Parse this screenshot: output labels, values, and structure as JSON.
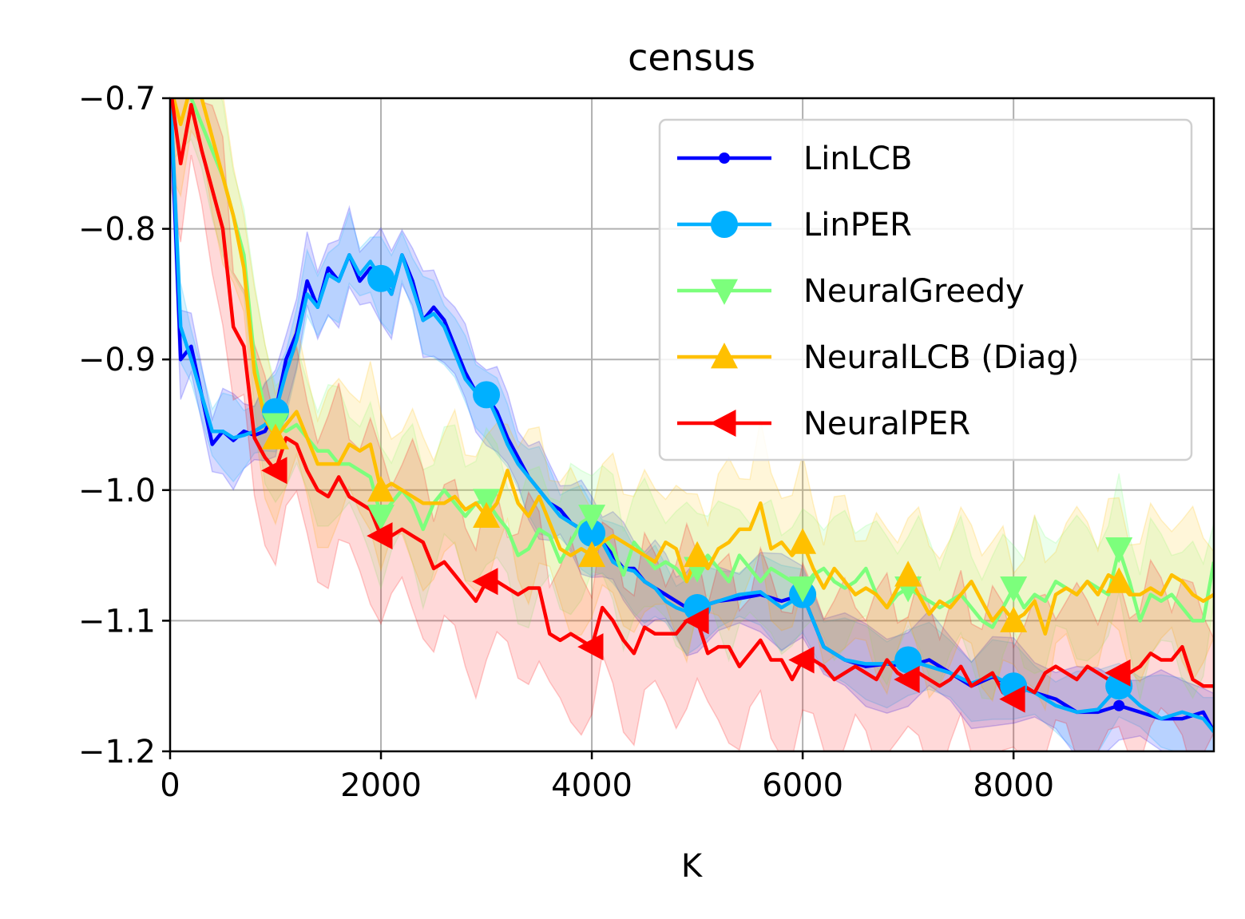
{
  "chart_data": {
    "type": "line",
    "title": "census",
    "xlabel": "K",
    "ylabel": "",
    "xlim": [
      0,
      9900
    ],
    "ylim": [
      -1.2,
      -0.7
    ],
    "xticks": [
      0,
      2000,
      4000,
      6000,
      8000
    ],
    "xtick_labels": [
      "0",
      "2000",
      "4000",
      "6000",
      "8000"
    ],
    "yticks": [
      -1.2,
      -1.1,
      -1.0,
      -0.9,
      -0.8,
      -0.7
    ],
    "ytick_labels": [
      "−1.2",
      "−1.1",
      "−1.0",
      "−0.9",
      "−0.8",
      "−0.7"
    ],
    "grid": true,
    "legend_position": "upper-right",
    "series": [
      {
        "name": "LinLCB",
        "color": "#0000ff",
        "marker": "point",
        "band": 0.028,
        "x": [
          0,
          100,
          200,
          400,
          500,
          600,
          700,
          800,
          900,
          1000,
          1100,
          1200,
          1300,
          1400,
          1500,
          1600,
          1700,
          1800,
          1900,
          2000,
          2100,
          2200,
          2300,
          2400,
          2500,
          2600,
          2700,
          2800,
          2900,
          3000,
          3100,
          3200,
          3300,
          3400,
          3500,
          3600,
          3700,
          3800,
          3900,
          4000,
          4100,
          4200,
          4300,
          4400,
          4500,
          4600,
          4700,
          4800,
          4900,
          5000,
          5200,
          5400,
          5600,
          5800,
          6000,
          6200,
          6400,
          6600,
          6800,
          7000,
          7200,
          7400,
          7600,
          7800,
          8000,
          8200,
          8400,
          8600,
          8800,
          9000,
          9200,
          9400,
          9600,
          9800,
          9900
        ],
        "y": [
          -0.69,
          -0.9,
          -0.89,
          -0.965,
          -0.955,
          -0.962,
          -0.955,
          -0.958,
          -0.955,
          -0.94,
          -0.9,
          -0.88,
          -0.84,
          -0.86,
          -0.83,
          -0.84,
          -0.82,
          -0.84,
          -0.83,
          -0.835,
          -0.85,
          -0.82,
          -0.84,
          -0.87,
          -0.86,
          -0.87,
          -0.89,
          -0.91,
          -0.925,
          -0.928,
          -0.94,
          -0.96,
          -0.975,
          -0.99,
          -1.0,
          -1.01,
          -1.015,
          -1.025,
          -1.03,
          -1.03,
          -1.04,
          -1.05,
          -1.06,
          -1.06,
          -1.07,
          -1.075,
          -1.08,
          -1.085,
          -1.09,
          -1.09,
          -1.085,
          -1.083,
          -1.08,
          -1.085,
          -1.08,
          -1.12,
          -1.13,
          -1.135,
          -1.133,
          -1.135,
          -1.13,
          -1.14,
          -1.15,
          -1.143,
          -1.15,
          -1.155,
          -1.16,
          -1.17,
          -1.17,
          -1.165,
          -1.17,
          -1.175,
          -1.175,
          -1.17,
          -1.185
        ]
      },
      {
        "name": "LinPER",
        "color": "#00b0ff",
        "marker": "circle",
        "band": 0.025,
        "x": [
          0,
          100,
          200,
          400,
          500,
          600,
          700,
          800,
          900,
          1000,
          1100,
          1200,
          1300,
          1400,
          1500,
          1600,
          1700,
          1800,
          1900,
          2000,
          2100,
          2200,
          2300,
          2400,
          2500,
          2600,
          2700,
          2800,
          2900,
          3000,
          3100,
          3200,
          3300,
          3400,
          3500,
          3600,
          3700,
          3800,
          3900,
          4000,
          4100,
          4200,
          4300,
          4400,
          4500,
          4600,
          4700,
          4800,
          4900,
          5000,
          5200,
          5400,
          5600,
          5800,
          6000,
          6200,
          6400,
          6600,
          6800,
          7000,
          7200,
          7400,
          7600,
          7800,
          8000,
          8200,
          8400,
          8600,
          8800,
          9000,
          9200,
          9400,
          9600,
          9800,
          9900
        ],
        "y": [
          -0.69,
          -0.875,
          -0.9,
          -0.955,
          -0.955,
          -0.96,
          -0.958,
          -0.955,
          -0.95,
          -0.94,
          -0.91,
          -0.885,
          -0.85,
          -0.86,
          -0.835,
          -0.84,
          -0.82,
          -0.835,
          -0.825,
          -0.838,
          -0.85,
          -0.82,
          -0.845,
          -0.87,
          -0.865,
          -0.875,
          -0.895,
          -0.915,
          -0.925,
          -0.927,
          -0.945,
          -0.965,
          -0.98,
          -0.99,
          -1.0,
          -1.01,
          -1.02,
          -1.025,
          -1.03,
          -1.033,
          -1.04,
          -1.055,
          -1.06,
          -1.062,
          -1.07,
          -1.075,
          -1.085,
          -1.09,
          -1.093,
          -1.09,
          -1.085,
          -1.08,
          -1.078,
          -1.09,
          -1.08,
          -1.12,
          -1.13,
          -1.133,
          -1.133,
          -1.13,
          -1.135,
          -1.14,
          -1.148,
          -1.142,
          -1.15,
          -1.155,
          -1.165,
          -1.17,
          -1.168,
          -1.15,
          -1.165,
          -1.175,
          -1.17,
          -1.175,
          -1.185
        ]
      },
      {
        "name": "NeuralGreedy",
        "color": "#7cff7c",
        "marker": "triangle-down",
        "band": 0.045,
        "x": [
          0,
          100,
          200,
          300,
          400,
          500,
          600,
          700,
          800,
          900,
          1000,
          1100,
          1200,
          1300,
          1400,
          1500,
          1600,
          1700,
          1800,
          1900,
          2000,
          2100,
          2200,
          2300,
          2400,
          2500,
          2600,
          2700,
          2800,
          2900,
          3000,
          3100,
          3200,
          3300,
          3400,
          3500,
          3600,
          3700,
          3800,
          3900,
          4000,
          4100,
          4200,
          4300,
          4400,
          4500,
          4600,
          4700,
          4800,
          4900,
          5000,
          5100,
          5200,
          5300,
          5400,
          5500,
          5600,
          5700,
          5800,
          5900,
          6000,
          6100,
          6200,
          6300,
          6400,
          6500,
          6600,
          6700,
          6800,
          6900,
          7000,
          7100,
          7200,
          7300,
          7400,
          7500,
          7600,
          7700,
          7800,
          7900,
          8000,
          8100,
          8200,
          8300,
          8400,
          8500,
          8600,
          8700,
          8800,
          8900,
          9000,
          9100,
          9200,
          9300,
          9400,
          9500,
          9600,
          9700,
          9800,
          9900
        ],
        "y": [
          -0.69,
          -0.69,
          -0.7,
          -0.72,
          -0.74,
          -0.76,
          -0.79,
          -0.82,
          -0.9,
          -0.94,
          -0.95,
          -0.955,
          -0.95,
          -0.96,
          -0.97,
          -0.97,
          -0.98,
          -0.98,
          -0.985,
          -0.99,
          -1.02,
          -1.01,
          -1.0,
          -1.01,
          -1.03,
          -1.01,
          -1.0,
          -1.01,
          -1.02,
          -1.01,
          -1.008,
          -1.02,
          -1.03,
          -1.05,
          -1.045,
          -1.03,
          -1.035,
          -1.055,
          -1.04,
          -1.025,
          -1.02,
          -1.035,
          -1.045,
          -1.065,
          -1.04,
          -1.05,
          -1.06,
          -1.055,
          -1.06,
          -1.07,
          -1.06,
          -1.05,
          -1.06,
          -1.07,
          -1.05,
          -1.06,
          -1.07,
          -1.06,
          -1.065,
          -1.07,
          -1.075,
          -1.065,
          -1.06,
          -1.07,
          -1.075,
          -1.07,
          -1.06,
          -1.08,
          -1.09,
          -1.08,
          -1.075,
          -1.08,
          -1.085,
          -1.09,
          -1.085,
          -1.08,
          -1.09,
          -1.1,
          -1.105,
          -1.09,
          -1.075,
          -1.09,
          -1.08,
          -1.085,
          -1.07,
          -1.075,
          -1.08,
          -1.07,
          -1.075,
          -1.08,
          -1.045,
          -1.07,
          -1.1,
          -1.08,
          -1.085,
          -1.08,
          -1.09,
          -1.1,
          -1.1,
          -1.055
        ]
      },
      {
        "name": "NeuralLCB (Diag)",
        "color": "#ffc000",
        "marker": "triangle-up",
        "band": 0.05,
        "x": [
          0,
          100,
          200,
          300,
          400,
          500,
          600,
          700,
          800,
          900,
          1000,
          1100,
          1200,
          1300,
          1400,
          1500,
          1600,
          1700,
          1800,
          1900,
          2000,
          2100,
          2200,
          2300,
          2400,
          2500,
          2600,
          2700,
          2800,
          2900,
          3000,
          3100,
          3200,
          3300,
          3400,
          3500,
          3600,
          3700,
          3800,
          3900,
          4000,
          4100,
          4200,
          4300,
          4400,
          4500,
          4600,
          4700,
          4800,
          4900,
          5000,
          5100,
          5200,
          5300,
          5400,
          5500,
          5600,
          5700,
          5800,
          5900,
          6000,
          6100,
          6200,
          6300,
          6400,
          6500,
          6600,
          6700,
          6800,
          6900,
          7000,
          7100,
          7200,
          7300,
          7400,
          7500,
          7600,
          7700,
          7800,
          7900,
          8000,
          8100,
          8200,
          8300,
          8400,
          8500,
          8600,
          8700,
          8800,
          8900,
          9000,
          9100,
          9200,
          9300,
          9400,
          9500,
          9600,
          9700,
          9800,
          9900
        ],
        "y": [
          -0.69,
          -0.72,
          -0.69,
          -0.7,
          -0.73,
          -0.76,
          -0.79,
          -0.83,
          -0.91,
          -0.945,
          -0.96,
          -0.95,
          -0.94,
          -0.96,
          -0.98,
          -0.98,
          -0.98,
          -0.965,
          -0.97,
          -0.965,
          -1.0,
          -0.995,
          -1.0,
          -1.005,
          -1.01,
          -1.01,
          -1.01,
          -1.005,
          -1.015,
          -1.01,
          -1.02,
          -1.01,
          -0.985,
          -1.01,
          -1.02,
          -1.005,
          -1.025,
          -1.045,
          -1.05,
          -1.045,
          -1.05,
          -1.04,
          -1.035,
          -1.04,
          -1.045,
          -1.05,
          -1.055,
          -1.04,
          -1.045,
          -1.07,
          -1.05,
          -1.06,
          -1.045,
          -1.04,
          -1.03,
          -1.03,
          -1.01,
          -1.045,
          -1.04,
          -1.05,
          -1.04,
          -1.06,
          -1.075,
          -1.06,
          -1.07,
          -1.08,
          -1.075,
          -1.08,
          -1.09,
          -1.075,
          -1.065,
          -1.08,
          -1.095,
          -1.085,
          -1.09,
          -1.08,
          -1.07,
          -1.085,
          -1.1,
          -1.09,
          -1.1,
          -1.095,
          -1.085,
          -1.11,
          -1.08,
          -1.075,
          -1.08,
          -1.07,
          -1.08,
          -1.065,
          -1.07,
          -1.08,
          -1.08,
          -1.075,
          -1.08,
          -1.065,
          -1.07,
          -1.08,
          -1.085,
          -1.08
        ]
      },
      {
        "name": "NeuralPER",
        "color": "#ff0000",
        "marker": "triangle-left",
        "band": 0.055,
        "x": [
          0,
          100,
          200,
          300,
          400,
          500,
          600,
          700,
          800,
          900,
          1000,
          1100,
          1200,
          1300,
          1400,
          1500,
          1600,
          1700,
          1800,
          1900,
          2000,
          2100,
          2200,
          2300,
          2400,
          2500,
          2600,
          2700,
          2800,
          2900,
          3000,
          3100,
          3200,
          3300,
          3400,
          3500,
          3600,
          3700,
          3800,
          3900,
          4000,
          4100,
          4200,
          4300,
          4400,
          4500,
          4600,
          4700,
          4800,
          4900,
          5000,
          5100,
          5200,
          5300,
          5400,
          5500,
          5600,
          5700,
          5800,
          5900,
          6000,
          6100,
          6200,
          6300,
          6400,
          6500,
          6600,
          6700,
          6800,
          6900,
          7000,
          7100,
          7200,
          7300,
          7400,
          7500,
          7600,
          7700,
          7800,
          7900,
          8000,
          8100,
          8200,
          8300,
          8400,
          8500,
          8600,
          8700,
          8800,
          8900,
          9000,
          9100,
          9200,
          9300,
          9400,
          9500,
          9600,
          9700,
          9800,
          9900
        ],
        "y": [
          -0.69,
          -0.75,
          -0.705,
          -0.74,
          -0.77,
          -0.8,
          -0.875,
          -0.89,
          -0.96,
          -0.975,
          -0.985,
          -0.96,
          -0.965,
          -0.985,
          -1.0,
          -1.005,
          -0.99,
          -1.005,
          -1.01,
          -1.015,
          -1.035,
          -1.035,
          -1.03,
          -1.035,
          -1.04,
          -1.06,
          -1.055,
          -1.065,
          -1.075,
          -1.085,
          -1.07,
          -1.07,
          -1.075,
          -1.08,
          -1.075,
          -1.075,
          -1.11,
          -1.115,
          -1.11,
          -1.115,
          -1.12,
          -1.09,
          -1.1,
          -1.115,
          -1.125,
          -1.105,
          -1.11,
          -1.11,
          -1.11,
          -1.1,
          -1.1,
          -1.125,
          -1.12,
          -1.12,
          -1.135,
          -1.125,
          -1.115,
          -1.13,
          -1.13,
          -1.145,
          -1.13,
          -1.13,
          -1.135,
          -1.145,
          -1.14,
          -1.135,
          -1.14,
          -1.145,
          -1.13,
          -1.14,
          -1.145,
          -1.14,
          -1.145,
          -1.15,
          -1.145,
          -1.135,
          -1.15,
          -1.145,
          -1.14,
          -1.155,
          -1.16,
          -1.15,
          -1.155,
          -1.14,
          -1.135,
          -1.14,
          -1.145,
          -1.135,
          -1.14,
          -1.145,
          -1.14,
          -1.14,
          -1.135,
          -1.125,
          -1.13,
          -1.13,
          -1.12,
          -1.145,
          -1.15,
          -1.15
        ]
      }
    ]
  }
}
